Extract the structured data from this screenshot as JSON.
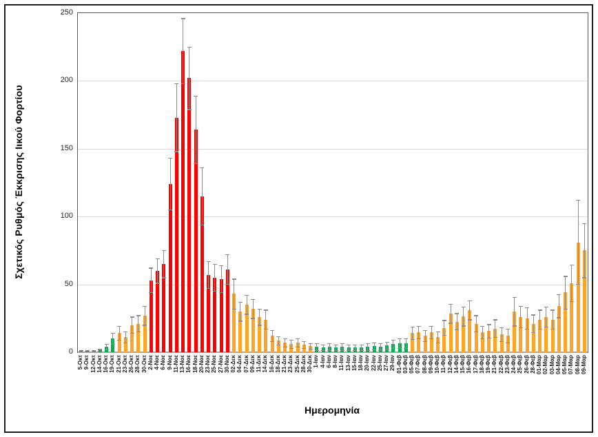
{
  "figure": {
    "type": "excel-style-chart-screenshot",
    "background": "#ffffff",
    "outer_border_color": "#1f1f1f"
  },
  "palette": {
    "dg": "#1e7145",
    "g": "#00b050",
    "o": "#ffa426",
    "r": "#fe0000",
    "error_bar": "#8c8c8c",
    "gridline": "#d9d9d9",
    "plot_border": "#595959",
    "axis_line": "#a6a6a6",
    "tick_text": "#262626"
  },
  "chart_data": {
    "type": "bar",
    "title": "",
    "xlabel": "Ημερομηνία",
    "ylabel": "Σχετικός Ρυθμός Έκκρισης Ιικού Φορτίου",
    "ylim": [
      0,
      250
    ],
    "ytick_step": 50,
    "yticks": [
      0,
      50,
      100,
      150,
      200,
      250
    ],
    "grid": "horizontal",
    "legend": "none",
    "error_bars": true,
    "categories": [
      "5-Οκτ",
      "9-Οκτ",
      "12-Οκτ",
      "14-Οκτ",
      "16-Οκτ",
      "19-Οκτ",
      "21-Οκτ",
      "23-Οκτ",
      "26-Οκτ",
      "28-Οκτ",
      "30-Οκτ",
      "2-Νοε",
      "4-Νοε",
      "6-Νοε",
      "9-Νοε",
      "11-Νοε",
      "13-Νοε",
      "16-Νοε",
      "18-Νοε",
      "20-Νοε",
      "23-Νοε",
      "25-Νοε",
      "27-Νοε",
      "30-Νοε",
      "02-Δεκ",
      "04-Δεκ",
      "07-Δεκ",
      "09-Δεκ",
      "11-Δεκ",
      "14-Δεκ",
      "16-Δεκ",
      "18-Δεκ",
      "21-Δεκ",
      "23-Δεκ",
      "25-Δεκ",
      "28-Δεκ",
      "30-Δεκ",
      "1-Ιαν",
      "4-Ιαν",
      "6-Ιαν",
      "8-Ιαν",
      "11-Ιαν",
      "13-Ιαν",
      "15-Ιαν",
      "18-Ιαν",
      "20-Ιαν",
      "22-Ιαν",
      "25-Ιαν",
      "27-Ιαν",
      "29-Ιαν",
      "01-Φεβ",
      "03-Φεβ",
      "05-Φεβ",
      "07-Φεβ",
      "08-Φεβ",
      "09-Φεβ",
      "10-Φεβ",
      "11-Φεβ",
      "12-Φεβ",
      "14-Φεβ",
      "15-Φεβ",
      "16-Φεβ",
      "17-Φεβ",
      "18-Φεβ",
      "19-Φεβ",
      "21-Φεβ",
      "22-Φεβ",
      "23-Φεβ",
      "24-Φεβ",
      "25-Φεβ",
      "26-Φεβ",
      "28-Φεβ",
      "01-Μαρ",
      "02-Μαρ",
      "03-Μαρ",
      "04-Μαρ",
      "05-Μαρ",
      "07-Μαρ",
      "08-Μαρ",
      "09-Μαρ"
    ],
    "values": [
      1,
      1,
      1,
      1.5,
      4,
      10,
      14,
      11,
      20,
      21,
      27,
      53,
      60,
      65,
      124,
      173,
      222,
      202,
      164,
      115,
      57,
      55,
      54,
      61,
      43,
      30,
      35,
      32,
      26,
      24,
      12,
      8.5,
      7,
      6,
      7,
      5.5,
      4.5,
      4,
      3.5,
      4,
      3.5,
      4,
      3.5,
      3.5,
      3.5,
      4,
      4.5,
      4,
      5,
      6,
      6.5,
      6.5,
      14,
      14.5,
      12,
      14.5,
      11,
      18,
      28.5,
      22.5,
      26.5,
      31,
      21,
      14.5,
      15.5,
      17.5,
      13,
      12,
      30,
      26,
      25,
      21,
      24,
      26,
      24,
      34,
      44,
      51,
      81,
      75
    ],
    "errors": [
      0.5,
      0.5,
      0.5,
      0.7,
      2,
      4,
      5,
      4,
      6,
      6,
      7,
      9,
      9,
      10,
      19,
      25,
      24,
      23,
      25,
      21,
      10,
      10,
      10,
      11,
      11,
      7,
      7,
      7,
      6,
      7,
      4,
      3,
      3,
      3,
      3,
      2.5,
      2,
      2.5,
      2,
      2.5,
      2,
      2.5,
      2,
      2,
      2,
      2.5,
      2.5,
      2.5,
      2.5,
      3,
      3.5,
      3.5,
      4.5,
      4.5,
      4,
      4.5,
      4,
      5.5,
      7,
      6,
      7,
      7,
      6,
      4.5,
      5,
      6.5,
      5,
      5,
      10.5,
      8,
      8,
      6.5,
      7,
      7.5,
      7,
      8.5,
      12,
      13.5,
      31,
      20
    ],
    "bar_colors": [
      "dg",
      "dg",
      "dg",
      "dg",
      "g",
      "g",
      "o",
      "o",
      "o",
      "o",
      "o",
      "r",
      "r",
      "r",
      "r",
      "r",
      "r",
      "r",
      "r",
      "r",
      "r",
      "r",
      "r",
      "r",
      "o",
      "o",
      "o",
      "o",
      "o",
      "o",
      "o",
      "o",
      "o",
      "o",
      "o",
      "o",
      "o",
      "g",
      "g",
      "g",
      "g",
      "g",
      "g",
      "g",
      "g",
      "g",
      "g",
      "g",
      "g",
      "g",
      "g",
      "g",
      "o",
      "o",
      "o",
      "o",
      "o",
      "o",
      "o",
      "o",
      "o",
      "o",
      "o",
      "o",
      "o",
      "o",
      "o",
      "o",
      "o",
      "o",
      "o",
      "o",
      "o",
      "o",
      "o",
      "o",
      "o",
      "o",
      "o",
      "o"
    ]
  }
}
